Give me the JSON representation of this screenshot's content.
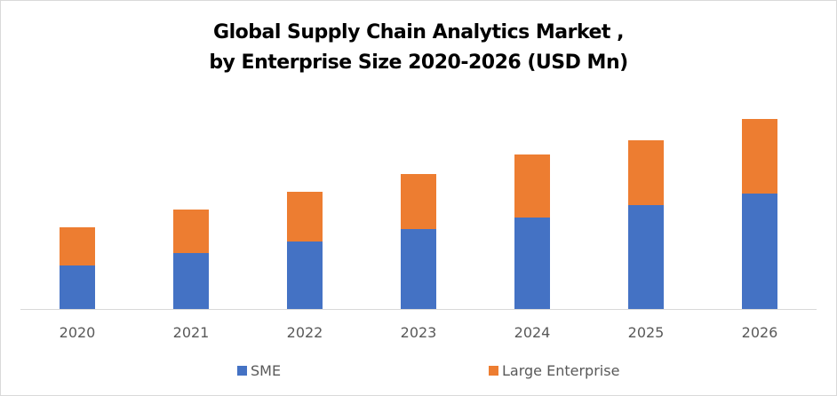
{
  "chart_data": {
    "type": "bar",
    "stacked": true,
    "title": "Global Supply Chain Analytics Market ,\nby Enterprise Size 2020-2026 (USD Mn)",
    "title_lines": [
      "Global Supply Chain Analytics Market ,",
      "by Enterprise Size 2020-2026 (USD Mn)"
    ],
    "categories": [
      "2020",
      "2021",
      "2022",
      "2023",
      "2024",
      "2025",
      "2026"
    ],
    "series": [
      {
        "name": "SME",
        "color": "#4472C4",
        "values": [
          49,
          63,
          76,
          90,
          103,
          117,
          130
        ]
      },
      {
        "name": "Large Enterprise",
        "color": "#ED7D31",
        "values": [
          43,
          49,
          56,
          62,
          71,
          73,
          84
        ]
      }
    ],
    "xlabel": "",
    "ylabel": "",
    "y_axis_shown": false,
    "grid": false,
    "legend_position": "bottom"
  }
}
